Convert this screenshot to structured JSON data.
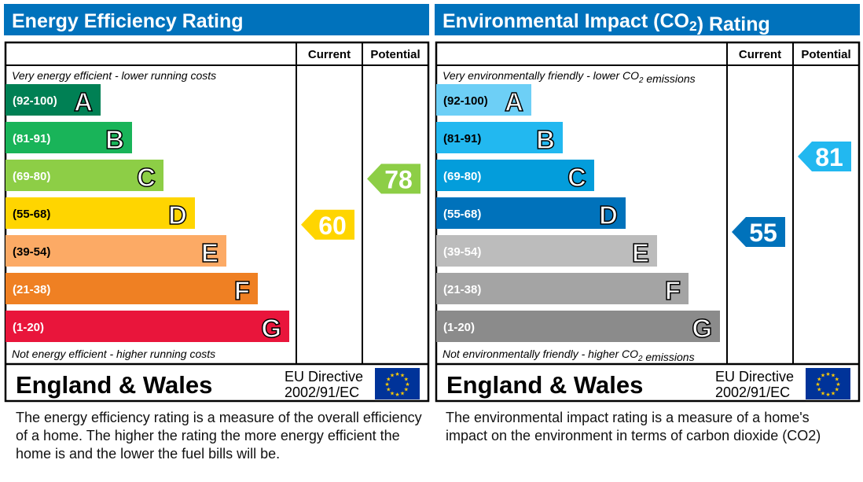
{
  "chart_data": [
    {
      "type": "bar",
      "title": "Energy Efficiency Rating",
      "col_current": "Current",
      "col_potential": "Potential",
      "top_note": "Very energy efficient - lower running costs",
      "bottom_note": "Not energy efficient - higher running costs",
      "bands": [
        {
          "range": "(92-100)",
          "letter": "A",
          "min": 92,
          "max": 100,
          "color": "#008054"
        },
        {
          "range": "(81-91)",
          "letter": "B",
          "min": 81,
          "max": 91,
          "color": "#19b459"
        },
        {
          "range": "(69-80)",
          "letter": "C",
          "min": 69,
          "max": 80,
          "color": "#8dce46"
        },
        {
          "range": "(55-68)",
          "letter": "D",
          "min": 55,
          "max": 68,
          "color": "#ffd500"
        },
        {
          "range": "(39-54)",
          "letter": "E",
          "min": 39,
          "max": 54,
          "color": "#fcaa65"
        },
        {
          "range": "(21-38)",
          "letter": "F",
          "min": 21,
          "max": 38,
          "color": "#ef8023"
        },
        {
          "range": "(1-20)",
          "letter": "G",
          "min": 1,
          "max": 20,
          "color": "#e9153b"
        }
      ],
      "current": {
        "value": 60,
        "color": "#ffd500"
      },
      "potential": {
        "value": 78,
        "color": "#8dce46"
      },
      "footer_region": "England & Wales",
      "footer_directive_1": "EU Directive",
      "footer_directive_2": "2002/91/EC",
      "description": "The energy efficiency rating is a measure of the overall efficiency of a home.  The higher the rating the more energy efficient the home is and the lower the fuel bills will be."
    },
    {
      "type": "bar",
      "title": "Environmental Impact (CO2) Rating",
      "col_current": "Current",
      "col_potential": "Potential",
      "top_note": "Very environmentally friendly - lower CO2 emissions",
      "bottom_note": "Not environmentally friendly - higher CO2 emissions",
      "bands": [
        {
          "range": "(92-100)",
          "letter": "A",
          "min": 92,
          "max": 100,
          "color": "#6dcff6"
        },
        {
          "range": "(81-91)",
          "letter": "B",
          "min": 81,
          "max": 91,
          "color": "#22b8f0"
        },
        {
          "range": "(69-80)",
          "letter": "C",
          "min": 69,
          "max": 80,
          "color": "#039ddb"
        },
        {
          "range": "(55-68)",
          "letter": "D",
          "min": 55,
          "max": 68,
          "color": "#0072bb"
        },
        {
          "range": "(39-54)",
          "letter": "E",
          "min": 39,
          "max": 54,
          "color": "#bcbcbc"
        },
        {
          "range": "(21-38)",
          "letter": "F",
          "min": 21,
          "max": 38,
          "color": "#a4a4a4"
        },
        {
          "range": "(1-20)",
          "letter": "G",
          "min": 1,
          "max": 20,
          "color": "#8b8b8b"
        }
      ],
      "current": {
        "value": 55,
        "color": "#0072bb"
      },
      "potential": {
        "value": 81,
        "color": "#22b8f0"
      },
      "footer_region": "England & Wales",
      "footer_directive_1": "EU Directive",
      "footer_directive_2": "2002/91/EC",
      "description": "The environmental impact rating is a measure of a home's impact on the environment in terms of carbon dioxide (CO2)"
    }
  ],
  "header_color": "#0072bc"
}
